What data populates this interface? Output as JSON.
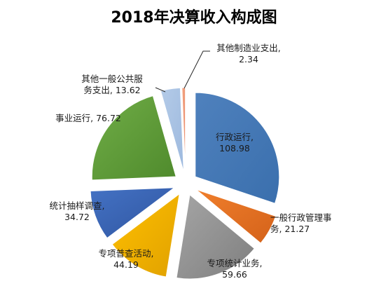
{
  "chart_data": {
    "type": "pie",
    "title": "2018年决算收入构成图",
    "exploded": true,
    "data_labels": "category-name, value",
    "slices": [
      {
        "name": "行政运行",
        "label_lines": [
          "行政运行,",
          "108.98"
        ],
        "value": 108.98,
        "color": "#4f81bd",
        "gradient_to": "#3a6fad"
      },
      {
        "name": "一般行政管理事务",
        "label_lines": [
          "一般行政管理事",
          "务, 21.27"
        ],
        "value": 21.27,
        "color": "#f07f2c",
        "gradient_to": "#d4621a"
      },
      {
        "name": "专项统计业务",
        "label_lines": [
          "专项统计业务,",
          "59.66"
        ],
        "value": 59.66,
        "color": "#a5a5a5",
        "gradient_to": "#7f7f7f"
      },
      {
        "name": "专项普查活动",
        "label_lines": [
          "专项普查活动,",
          "44.19"
        ],
        "value": 44.19,
        "color": "#ffc000",
        "gradient_to": "#e0a100"
      },
      {
        "name": "统计抽样调查",
        "label_lines": [
          "统计抽样调查,",
          "34.72"
        ],
        "value": 34.72,
        "color": "#4472c4",
        "gradient_to": "#2f55a0"
      },
      {
        "name": "事业运行",
        "label_lines": [
          "事业运行, 76.72"
        ],
        "value": 76.72,
        "color": "#70ad47",
        "gradient_to": "#4f8a2c"
      },
      {
        "name": "其他一般公共服务支出",
        "label_lines": [
          "其他一般公共服",
          "务支出, 13.62"
        ],
        "value": 13.62,
        "color": "#b4cbe8",
        "gradient_to": "#9db9de"
      },
      {
        "name": "其他制造业支出",
        "label_lines": [
          "其他制造业支出,",
          "2.34"
        ],
        "value": 2.34,
        "color": "#f4a582",
        "gradient_to": "#e8896a"
      }
    ]
  }
}
